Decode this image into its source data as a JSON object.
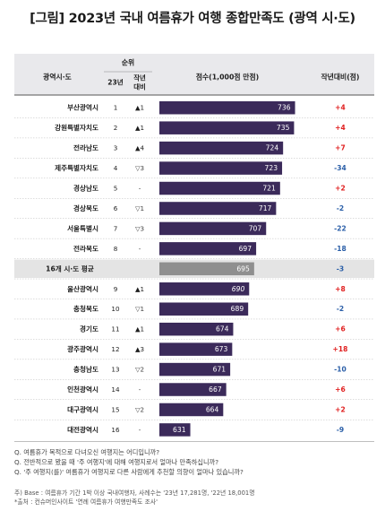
{
  "title": "[그림] 2023년 국내 여름휴가 여행 종합만족도 (광역 시·도)",
  "header": {
    "region": "광역시·도",
    "rank_group": "순위",
    "rank_year": "23년",
    "rank_change": "작년\n대비",
    "score": "점수(1,000점 만점)",
    "yoy": "작년대비(점)"
  },
  "colors": {
    "bar": "#3b2a5a",
    "average_bar": "#8f8f8f",
    "positive": "#e02020",
    "negative": "#2b5fa8",
    "header_bg": "#e9e9ec",
    "average_row_bg": "#e4e4e4"
  },
  "chart_data": {
    "type": "bar",
    "orientation": "horizontal",
    "xlim": [
      600,
      740
    ],
    "rows": [
      {
        "region": "부산광역시",
        "rank": "1",
        "change": "▲1",
        "score": 736,
        "yoy": "+4"
      },
      {
        "region": "강원특별자치도",
        "rank": "2",
        "change": "▲1",
        "score": 735,
        "yoy": "+4"
      },
      {
        "region": "전라남도",
        "rank": "3",
        "change": "▲4",
        "score": 724,
        "yoy": "+7"
      },
      {
        "region": "제주특별자치도",
        "rank": "4",
        "change": "▽3",
        "score": 723,
        "yoy": "-34"
      },
      {
        "region": "경상남도",
        "rank": "5",
        "change": "-",
        "score": 721,
        "yoy": "+2"
      },
      {
        "region": "경상북도",
        "rank": "6",
        "change": "▽1",
        "score": 717,
        "yoy": "-2"
      },
      {
        "region": "서울특별시",
        "rank": "7",
        "change": "▽3",
        "score": 707,
        "yoy": "-22"
      },
      {
        "region": "전라북도",
        "rank": "8",
        "change": "-",
        "score": 697,
        "yoy": "-18"
      },
      {
        "region": "16개 시·도 평균",
        "rank": "",
        "change": "",
        "score": 695,
        "yoy": "-3",
        "is_average": true
      },
      {
        "region": "울산광역시",
        "rank": "9",
        "change": "▲1",
        "score": 690,
        "yoy": "+8",
        "italic": true
      },
      {
        "region": "충청북도",
        "rank": "10",
        "change": "▽1",
        "score": 689,
        "yoy": "-2"
      },
      {
        "region": "경기도",
        "rank": "11",
        "change": "▲1",
        "score": 674,
        "yoy": "+6"
      },
      {
        "region": "광주광역시",
        "rank": "12",
        "change": "▲3",
        "score": 673,
        "yoy": "+18"
      },
      {
        "region": "충청남도",
        "rank": "13",
        "change": "▽2",
        "score": 671,
        "yoy": "-10"
      },
      {
        "region": "인천광역시",
        "rank": "14",
        "change": "-",
        "score": 667,
        "yoy": "+6"
      },
      {
        "region": "대구광역시",
        "rank": "15",
        "change": "▽2",
        "score": 664,
        "yoy": "+2"
      },
      {
        "region": "대전광역시",
        "rank": "16",
        "change": "-",
        "score": 631,
        "yoy": "-9"
      }
    ]
  },
  "questions": [
    "Q. 여름휴가 목적으로 다녀오신 여행지는 어디입니까?",
    "Q. 전반적으로 봤을 때 '주 여행지'에 대해 여행지로서 얼마나 만족하십니까?",
    "Q. '주 여행지(를)' 여름휴가 여행지로 다른 사람에게 추천할 의향이 얼마나 있습니까?"
  ],
  "footnotes": [
    "주) Base : 여름휴가 기간 1박 이상 국내여행자, 사례수는 '23년 17,281명, '22년 18,001명",
    "*출처 : 컨슈머인사이트 '연례 여름휴가 여행만족도 조사'"
  ]
}
